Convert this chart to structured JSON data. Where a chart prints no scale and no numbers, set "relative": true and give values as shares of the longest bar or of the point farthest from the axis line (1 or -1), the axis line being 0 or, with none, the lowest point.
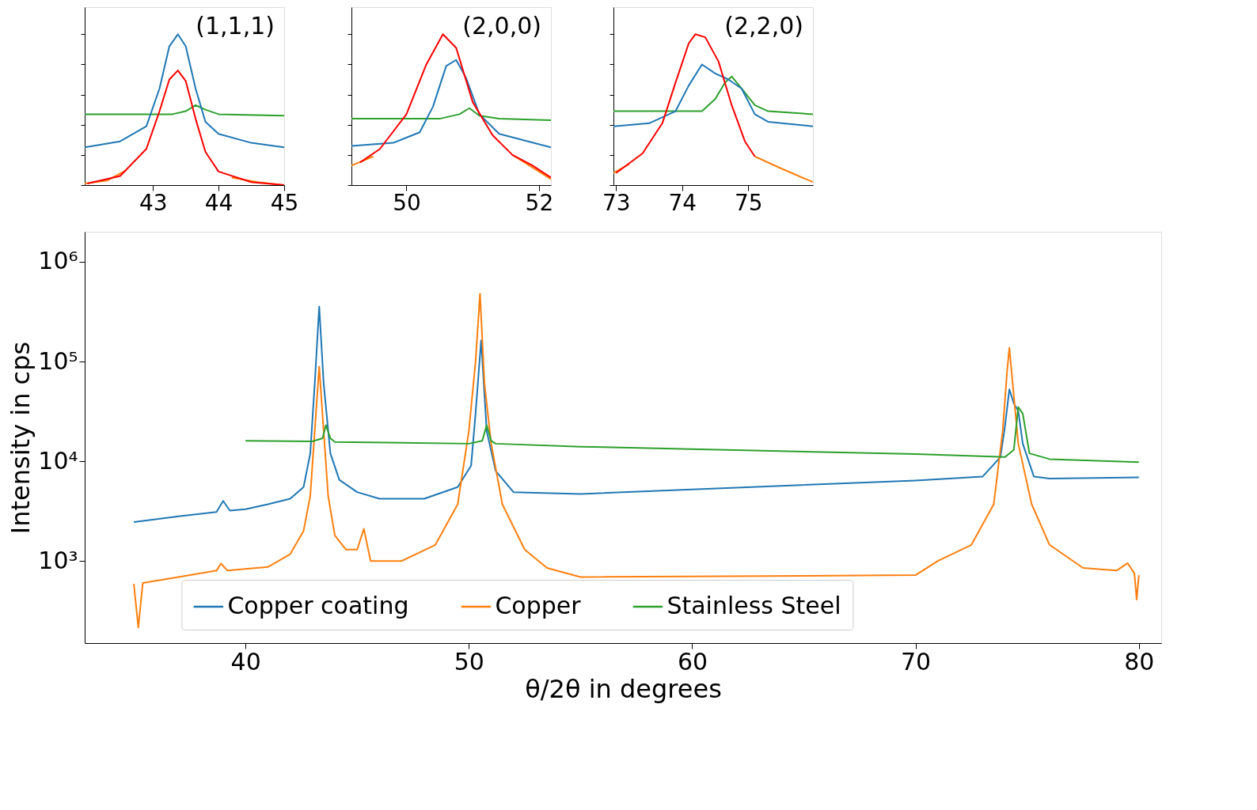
{
  "chart_data": [
    {
      "type": "line",
      "relative": true,
      "tick_labels": "x",
      "xlim": [
        41.96,
        45.0
      ],
      "xticks": [
        43,
        44,
        45
      ],
      "annotations": [
        "(1,1,1)"
      ],
      "series": [
        {
          "color": "#ff7f0e",
          "x": [
            41.96,
            42.3,
            42.6,
            43.4,
            44.2,
            44.6,
            45.0
          ],
          "values": [
            0.01,
            0.03,
            0.1,
            null,
            0.05,
            0.02,
            0.0
          ]
        },
        {
          "color": "#2ca02c",
          "x": [
            41.96,
            43.3,
            43.5,
            43.65,
            43.8,
            44.0,
            45.0
          ],
          "values": [
            0.47,
            0.47,
            0.49,
            0.53,
            0.5,
            0.47,
            0.46
          ]
        },
        {
          "color": "#1f77b4",
          "x": [
            41.96,
            42.5,
            42.9,
            43.1,
            43.25,
            43.38,
            43.5,
            43.65,
            43.8,
            44.0,
            44.5,
            45.0
          ],
          "values": [
            0.25,
            0.29,
            0.39,
            0.64,
            0.92,
            1.0,
            0.92,
            0.64,
            0.42,
            0.34,
            0.28,
            0.25
          ]
        },
        {
          "color": "#ff0000",
          "x": [
            42.0,
            42.5,
            42.9,
            43.1,
            43.25,
            43.38,
            43.5,
            43.65,
            43.8,
            44.0,
            44.5,
            45.0
          ],
          "values": [
            0.01,
            0.06,
            0.24,
            0.49,
            0.7,
            0.76,
            0.69,
            0.44,
            0.22,
            0.09,
            0.02,
            0.0
          ]
        }
      ]
    },
    {
      "type": "line",
      "relative": true,
      "tick_labels": "x",
      "xlim": [
        49.17,
        52.18
      ],
      "xticks": [
        50,
        52
      ],
      "annotations": [
        "(2,0,0)"
      ],
      "series": [
        {
          "color": "#ff7f0e",
          "x": [
            49.17,
            49.5,
            50.6,
            51.6,
            52.18
          ],
          "values": [
            0.13,
            0.19,
            null,
            0.2,
            0.04
          ]
        },
        {
          "color": "#2ca02c",
          "x": [
            49.17,
            50.5,
            50.8,
            50.95,
            51.1,
            51.4,
            52.18
          ],
          "values": [
            0.44,
            0.44,
            0.47,
            0.51,
            0.46,
            0.44,
            0.43
          ]
        },
        {
          "color": "#1f77b4",
          "x": [
            49.17,
            49.8,
            50.2,
            50.4,
            50.6,
            50.75,
            50.9,
            51.1,
            51.4,
            52.18
          ],
          "values": [
            0.26,
            0.28,
            0.35,
            0.52,
            0.79,
            0.83,
            0.71,
            0.47,
            0.34,
            0.25
          ]
        },
        {
          "color": "#ff0000",
          "x": [
            49.3,
            49.6,
            50.0,
            50.3,
            50.55,
            50.75,
            51.0,
            51.3,
            51.6,
            51.9,
            52.18
          ],
          "values": [
            0.15,
            0.24,
            0.47,
            0.8,
            1.0,
            0.91,
            0.55,
            0.33,
            0.2,
            0.13,
            0.05
          ]
        }
      ]
    },
    {
      "type": "line",
      "relative": true,
      "tick_labels": "x",
      "xlim": [
        72.96,
        75.98
      ],
      "xticks": [
        73,
        74,
        75
      ],
      "annotations": [
        "(2,2,0)"
      ],
      "series": [
        {
          "color": "#ff7f0e",
          "x": [
            72.96,
            73.2,
            74.2,
            75.1,
            75.5,
            75.98
          ],
          "values": [
            0.08,
            0.14,
            null,
            0.19,
            0.11,
            0.02
          ]
        },
        {
          "color": "#2ca02c",
          "x": [
            72.96,
            74.3,
            74.5,
            74.65,
            74.75,
            74.9,
            75.1,
            75.3,
            75.98
          ],
          "values": [
            0.49,
            0.49,
            0.57,
            0.68,
            0.72,
            0.64,
            0.53,
            0.49,
            0.47
          ]
        },
        {
          "color": "#1f77b4",
          "x": [
            72.96,
            73.5,
            73.9,
            74.1,
            74.3,
            74.5,
            74.7,
            74.9,
            75.1,
            75.3,
            75.98
          ],
          "values": [
            0.39,
            0.41,
            0.49,
            0.66,
            0.8,
            0.74,
            0.7,
            0.64,
            0.47,
            0.42,
            0.39
          ]
        },
        {
          "color": "#ff0000",
          "x": [
            73.0,
            73.4,
            73.7,
            73.9,
            74.1,
            74.2,
            74.35,
            74.55,
            74.75,
            74.95,
            75.1
          ],
          "values": [
            0.08,
            0.21,
            0.41,
            0.68,
            0.94,
            1.0,
            0.98,
            0.82,
            0.53,
            0.29,
            0.19
          ]
        }
      ]
    },
    {
      "type": "line",
      "log": "y",
      "xlabel": "θ/2θ in degrees",
      "ylabel": "Intensity in cps",
      "legend": "bottom",
      "xlim": [
        32.8,
        81.0
      ],
      "ylim": [
        150,
        2000000
      ],
      "xticks": [
        40,
        50,
        60,
        70,
        80
      ],
      "yticks": [
        {
          "value": 1000,
          "label": "10³"
        },
        {
          "value": 10000,
          "label": "10⁴"
        },
        {
          "value": 100000,
          "label": "10⁵"
        },
        {
          "value": 1000000,
          "label": "10⁶"
        }
      ],
      "series": [
        {
          "name": "Copper coating",
          "color": "#1f77b4",
          "x": [
            35,
            37,
            38.7,
            39,
            39.3,
            40,
            41,
            42,
            42.6,
            42.9,
            43.1,
            43.3,
            43.5,
            43.8,
            44.2,
            45,
            46,
            48,
            49.5,
            50.1,
            50.3,
            50.55,
            50.8,
            51.2,
            52,
            55,
            70,
            73,
            73.8,
            74.0,
            74.2,
            74.4,
            74.6,
            74.8,
            75.3,
            76,
            80
          ],
          "values": [
            2450,
            2800,
            3100,
            4000,
            3200,
            3300,
            3700,
            4200,
            5500,
            12000,
            60000,
            356000,
            60000,
            12000,
            6500,
            4900,
            4200,
            4200,
            5500,
            9000,
            30000,
            163000,
            20000,
            8000,
            4900,
            4700,
            6400,
            7000,
            11000,
            22000,
            52500,
            38000,
            32000,
            15000,
            7000,
            6700,
            6900
          ]
        },
        {
          "name": "Copper",
          "color": "#ff7f0e",
          "x": [
            35,
            35.2,
            35.4,
            37,
            38.7,
            38.9,
            39.2,
            41,
            42,
            42.6,
            42.9,
            43.1,
            43.3,
            43.5,
            43.7,
            44,
            44.5,
            45,
            45.3,
            45.6,
            47,
            48.5,
            49.5,
            50.0,
            50.3,
            50.5,
            50.7,
            51.0,
            51.5,
            52.5,
            53.5,
            55,
            70,
            71,
            72.5,
            73.5,
            73.9,
            74.1,
            74.2,
            74.35,
            74.6,
            75.2,
            76,
            77.5,
            79,
            79.5,
            79.8,
            79.9,
            80
          ],
          "values": [
            590,
            215,
            600,
            690,
            800,
            940,
            800,
            870,
            1170,
            2000,
            4500,
            20000,
            89000,
            20000,
            4500,
            1800,
            1300,
            1300,
            2100,
            1000,
            1000,
            1450,
            3700,
            20000,
            100000,
            480000,
            60000,
            15000,
            3700,
            1300,
            850,
            690,
            720,
            1000,
            1450,
            3700,
            20000,
            80000,
            137000,
            60000,
            15000,
            3700,
            1450,
            850,
            800,
            950,
            750,
            410,
            720
          ]
        },
        {
          "name": "Stainless Steel",
          "color": "#2ca02c",
          "x": [
            40,
            43,
            43.45,
            43.6,
            43.8,
            44,
            50,
            50.6,
            50.8,
            51.0,
            51.2,
            55,
            70,
            74,
            74.4,
            74.6,
            74.8,
            75.1,
            76,
            80
          ],
          "values": [
            16000,
            15800,
            17000,
            23000,
            17000,
            15600,
            15000,
            16000,
            23000,
            16000,
            15000,
            14000,
            11800,
            11000,
            13000,
            35000,
            30000,
            12000,
            10500,
            9800
          ]
        }
      ]
    }
  ]
}
